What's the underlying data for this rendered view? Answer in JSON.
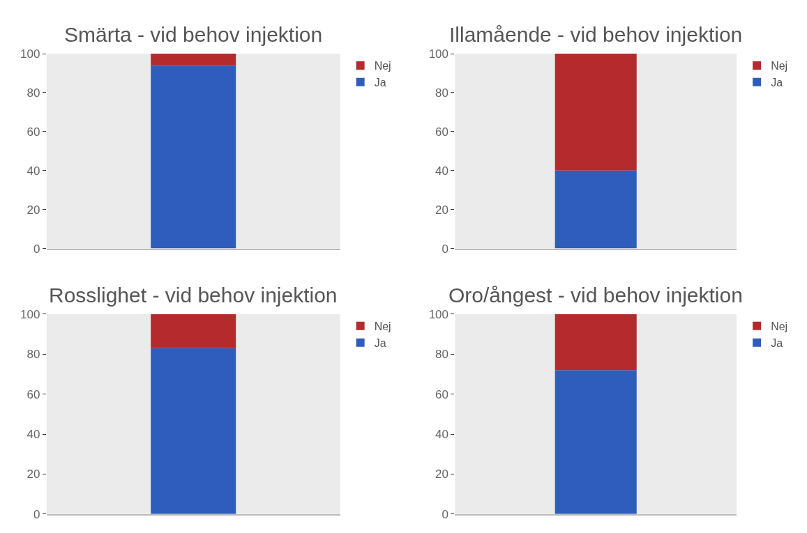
{
  "chart_data": [
    {
      "type": "bar",
      "title": "Smärta - vid behov injektion",
      "categories": [
        null
      ],
      "stacked": true,
      "ylim": [
        0,
        100
      ],
      "yticks": [
        0,
        20,
        40,
        60,
        80,
        100
      ],
      "grid": false,
      "legend": "top right",
      "tick_labels": "y",
      "series": [
        {
          "name": "Ja",
          "color": "#2f5dbd",
          "values": [
            94
          ]
        },
        {
          "name": "Nej",
          "color": "#b52a2d",
          "values": [
            6
          ]
        }
      ]
    },
    {
      "type": "bar",
      "title": "Illamående - vid behov injektion",
      "categories": [
        null
      ],
      "stacked": true,
      "ylim": [
        0,
        100
      ],
      "yticks": [
        0,
        20,
        40,
        60,
        80,
        100
      ],
      "grid": false,
      "legend": "top right",
      "tick_labels": "y",
      "series": [
        {
          "name": "Ja",
          "color": "#2f5dbd",
          "values": [
            40
          ]
        },
        {
          "name": "Nej",
          "color": "#b52a2d",
          "values": [
            60
          ]
        }
      ]
    },
    {
      "type": "bar",
      "title": "Rosslighet - vid behov injektion",
      "categories": [
        null
      ],
      "stacked": true,
      "ylim": [
        0,
        100
      ],
      "yticks": [
        0,
        20,
        40,
        60,
        80,
        100
      ],
      "grid": false,
      "legend": "top right",
      "tick_labels": "y",
      "series": [
        {
          "name": "Ja",
          "color": "#2f5dbd",
          "values": [
            83
          ]
        },
        {
          "name": "Nej",
          "color": "#b52a2d",
          "values": [
            17
          ]
        }
      ]
    },
    {
      "type": "bar",
      "title": "Oro/ångest - vid behov injektion",
      "categories": [
        null
      ],
      "stacked": true,
      "ylim": [
        0,
        100
      ],
      "yticks": [
        0,
        20,
        40,
        60,
        80,
        100
      ],
      "grid": false,
      "legend": "top right",
      "tick_labels": "y",
      "series": [
        {
          "name": "Ja",
          "color": "#2f5dbd",
          "values": [
            72
          ]
        },
        {
          "name": "Nej",
          "color": "#b52a2d",
          "values": [
            28
          ]
        }
      ]
    }
  ]
}
